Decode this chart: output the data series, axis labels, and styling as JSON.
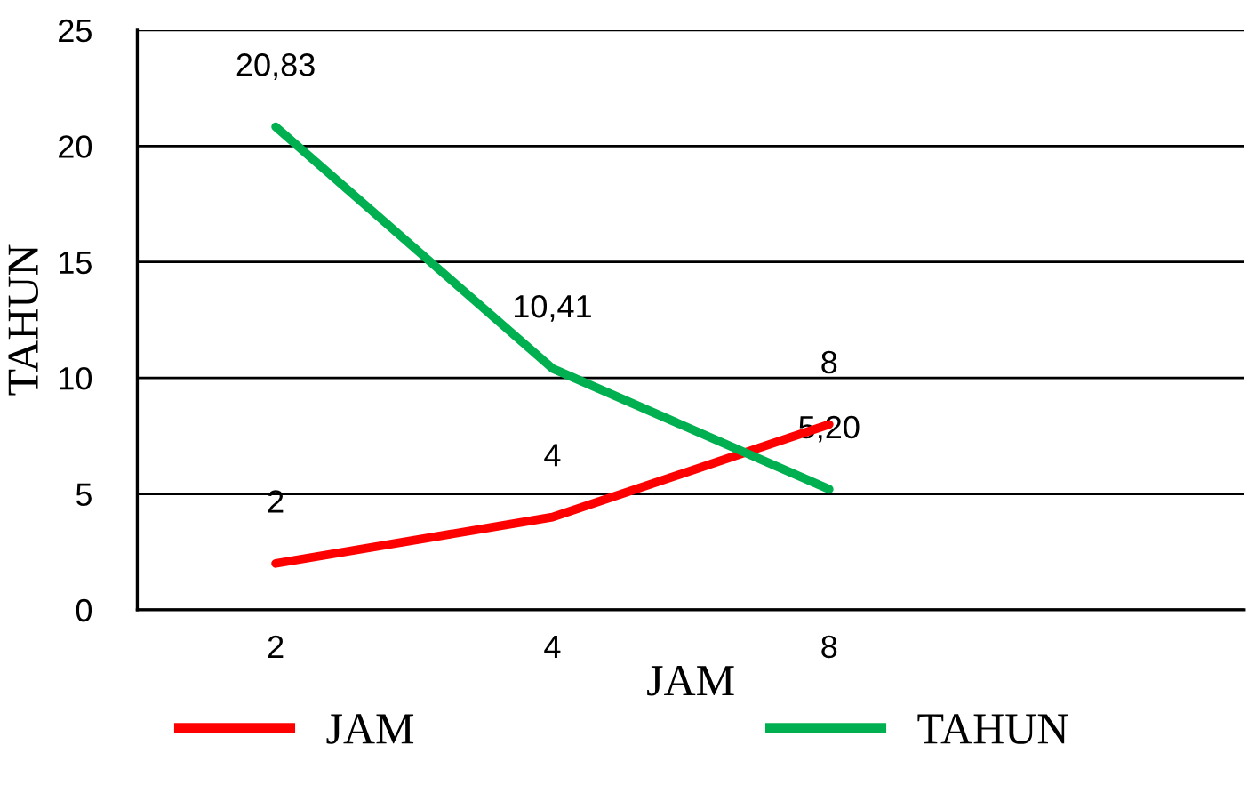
{
  "chart_data": {
    "type": "line",
    "xlabel": "JAM",
    "ylabel": "TAHUN",
    "categories": [
      "2",
      "4",
      "8",
      null
    ],
    "series": [
      {
        "name": "JAM",
        "color": "#ff0000",
        "values": [
          2,
          4,
          8,
          null
        ],
        "value_labels": [
          "2",
          "4",
          "8",
          null
        ]
      },
      {
        "name": "TAHUN",
        "color": "#00b050",
        "values": [
          20.83,
          10.41,
          5.2,
          null
        ],
        "value_labels": [
          "20,83",
          "10,41",
          "5,20",
          null
        ]
      }
    ],
    "ylim": [
      0,
      25
    ],
    "yticks": [
      0,
      5,
      10,
      15,
      20,
      25
    ],
    "grid": "y",
    "legend": "bottom",
    "marker": "none",
    "line_style": "solid"
  }
}
